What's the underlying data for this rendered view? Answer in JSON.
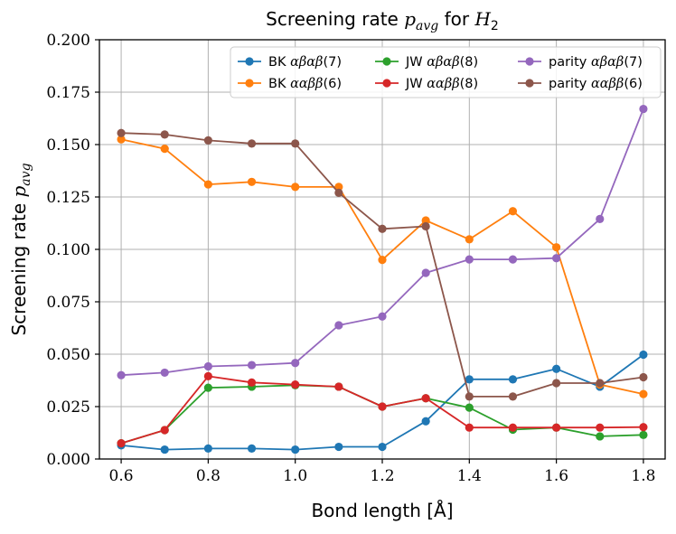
{
  "chart_data": {
    "type": "line",
    "title": "Screening rate p_avg for H_2",
    "title_parts": {
      "text": "Screening rate ",
      "math": "p",
      "math_sub": "avg",
      "text2": " for ",
      "math2": "H",
      "math2_sub": "2"
    },
    "xlabel": "Bond length [Å]",
    "ylabel": "Screening rate p_avg",
    "ylabel_parts": {
      "text": "Screening rate ",
      "math": "p",
      "math_sub": "avg"
    },
    "xlim": [
      0.55,
      1.85
    ],
    "ylim": [
      0,
      0.2
    ],
    "x_ticks": [
      "0.6",
      "0.8",
      "1.0",
      "1.2",
      "1.4",
      "1.6",
      "1.8"
    ],
    "x_tick_values": [
      0.6,
      0.8,
      1.0,
      1.2,
      1.4,
      1.6,
      1.8
    ],
    "y_ticks": [
      "0.000",
      "0.025",
      "0.050",
      "0.075",
      "0.100",
      "0.125",
      "0.150",
      "0.175",
      "0.200"
    ],
    "y_tick_values": [
      0,
      0.025,
      0.05,
      0.075,
      0.1,
      0.125,
      0.15,
      0.175,
      0.2
    ],
    "grid": true,
    "legend_position": "top-right",
    "x": [
      0.6,
      0.7,
      0.8,
      0.9,
      1.0,
      1.1,
      1.2,
      1.3,
      1.4,
      1.5,
      1.6,
      1.7,
      1.8
    ],
    "series": [
      {
        "name": "BK αβαβ(7)",
        "label_prefix": "BK ",
        "label_math": "αβαβ",
        "label_suffix": "(7)",
        "color": "#1f77b4",
        "values": [
          0.0065,
          0.0045,
          0.005,
          0.005,
          0.0045,
          0.0058,
          0.0058,
          0.018,
          0.038,
          0.038,
          0.043,
          0.0345,
          0.0498
        ]
      },
      {
        "name": "BK ααββ(6)",
        "label_prefix": "BK ",
        "label_math": "ααββ",
        "label_suffix": "(6)",
        "color": "#ff7f0e",
        "values": [
          0.1525,
          0.148,
          0.131,
          0.1322,
          0.1298,
          0.1298,
          0.095,
          0.1138,
          0.1048,
          0.1182,
          0.101,
          0.0355,
          0.031
        ]
      },
      {
        "name": "JW αβαβ(8)",
        "label_prefix": "JW ",
        "label_math": "αβαβ",
        "label_suffix": "(8)",
        "color": "#2ca02c",
        "values": [
          0.0075,
          0.0138,
          0.034,
          0.0345,
          0.0352,
          0.0345,
          0.025,
          0.029,
          0.0245,
          0.014,
          0.015,
          0.0108,
          0.0115
        ]
      },
      {
        "name": "JW ααββ(8)",
        "label_prefix": "JW ",
        "label_math": "ααββ",
        "label_suffix": "(8)",
        "color": "#d62728",
        "values": [
          0.0075,
          0.0138,
          0.0395,
          0.0365,
          0.0355,
          0.0345,
          0.025,
          0.029,
          0.015,
          0.015,
          0.015,
          0.015,
          0.0152
        ]
      },
      {
        "name": "parity αβαβ(7)",
        "label_prefix": "parity ",
        "label_math": "αβαβ",
        "label_suffix": "(7)",
        "color": "#9467bd",
        "values": [
          0.04,
          0.0412,
          0.0442,
          0.0448,
          0.0458,
          0.0638,
          0.068,
          0.0888,
          0.0952,
          0.0952,
          0.0958,
          0.1145,
          0.167
        ]
      },
      {
        "name": "parity ααββ(6)",
        "label_prefix": "parity ",
        "label_math": "ααββ",
        "label_suffix": "(6)",
        "color": "#8c564b",
        "values": [
          0.1555,
          0.1548,
          0.152,
          0.1505,
          0.1505,
          0.127,
          0.1098,
          0.111,
          0.0298,
          0.0298,
          0.0362,
          0.0362,
          0.039
        ]
      }
    ]
  }
}
